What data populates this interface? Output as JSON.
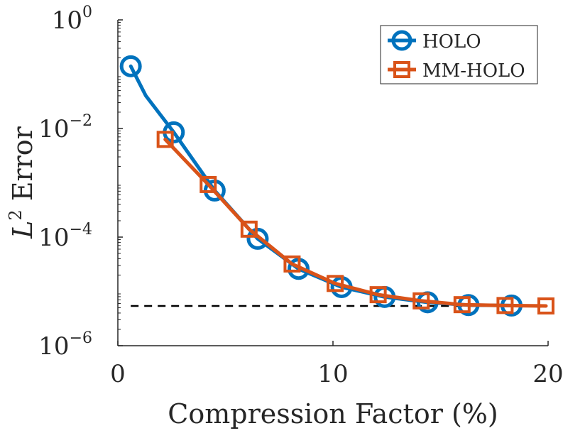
{
  "chart_data": {
    "type": "line",
    "title": "",
    "xlabel": "Compression Factor (%)",
    "ylabel_var": "L",
    "ylabel_sup": "2",
    "ylabel_rest": " Error",
    "xlim": [
      0,
      20
    ],
    "ylim": [
      1e-06,
      1
    ],
    "yscale": "log",
    "grid": false,
    "legend_position": "top-right",
    "x_ticks": [
      {
        "value": 0,
        "label": "0"
      },
      {
        "value": 10,
        "label": "10"
      },
      {
        "value": 20,
        "label": "20"
      }
    ],
    "y_ticks": [
      {
        "value": 1,
        "base": "10",
        "exp": "0"
      },
      {
        "value": 0.01,
        "base": "10",
        "exp": "−2"
      },
      {
        "value": 0.0001,
        "base": "10",
        "exp": "−4"
      },
      {
        "value": 1e-06,
        "base": "10",
        "exp": "−6"
      }
    ],
    "series": [
      {
        "name": "HOLO",
        "color": "#0072BD",
        "marker": "circle",
        "line_points": [
          {
            "x": 0.6,
            "y": 0.14
          },
          {
            "x": 1.3,
            "y": 0.04
          },
          {
            "x": 2.6,
            "y": 0.0085
          },
          {
            "x": 4.5,
            "y": 0.00072
          },
          {
            "x": 6.5,
            "y": 9.3e-05
          },
          {
            "x": 8.4,
            "y": 2.6e-05
          },
          {
            "x": 10.4,
            "y": 1.2e-05
          },
          {
            "x": 12.4,
            "y": 7.9e-06
          },
          {
            "x": 14.4,
            "y": 6.3e-06
          },
          {
            "x": 16.3,
            "y": 5.6e-06
          },
          {
            "x": 18.3,
            "y": 5.5e-06
          }
        ],
        "marker_points": [
          {
            "x": 0.6,
            "y": 0.14
          },
          {
            "x": 2.6,
            "y": 0.0085
          },
          {
            "x": 4.5,
            "y": 0.00072
          },
          {
            "x": 6.5,
            "y": 9.3e-05
          },
          {
            "x": 8.4,
            "y": 2.6e-05
          },
          {
            "x": 10.4,
            "y": 1.2e-05
          },
          {
            "x": 12.4,
            "y": 7.9e-06
          },
          {
            "x": 14.4,
            "y": 6.3e-06
          },
          {
            "x": 16.3,
            "y": 5.6e-06
          },
          {
            "x": 18.3,
            "y": 5.5e-06
          }
        ]
      },
      {
        "name": "MM-HOLO",
        "color": "#D95319",
        "marker": "square",
        "line_points": [
          {
            "x": 2.2,
            "y": 0.0063
          },
          {
            "x": 4.2,
            "y": 0.00093
          },
          {
            "x": 6.1,
            "y": 0.00014
          },
          {
            "x": 8.1,
            "y": 3.2e-05
          },
          {
            "x": 10.1,
            "y": 1.4e-05
          },
          {
            "x": 12.1,
            "y": 8.7e-06
          },
          {
            "x": 14.1,
            "y": 6.7e-06
          },
          {
            "x": 16.0,
            "y": 5.7e-06
          },
          {
            "x": 18.0,
            "y": 5.5e-06
          },
          {
            "x": 19.9,
            "y": 5.4e-06
          }
        ],
        "marker_points": [
          {
            "x": 2.2,
            "y": 0.0063
          },
          {
            "x": 4.2,
            "y": 0.00093
          },
          {
            "x": 6.1,
            "y": 0.00014
          },
          {
            "x": 8.1,
            "y": 3.2e-05
          },
          {
            "x": 10.1,
            "y": 1.4e-05
          },
          {
            "x": 12.1,
            "y": 8.7e-06
          },
          {
            "x": 14.1,
            "y": 6.7e-06
          },
          {
            "x": 16.0,
            "y": 5.7e-06
          },
          {
            "x": 18.0,
            "y": 5.5e-06
          },
          {
            "x": 19.9,
            "y": 5.4e-06
          }
        ]
      }
    ],
    "reference_line": {
      "y": 5.4e-06,
      "x_start": 0.6,
      "x_end": 20,
      "style": "dashed",
      "color": "#000000"
    },
    "colors": {
      "axis": "#262626",
      "background": "#ffffff"
    }
  }
}
